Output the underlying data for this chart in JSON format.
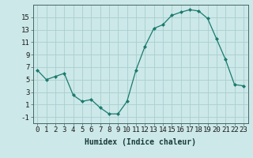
{
  "x": [
    0,
    1,
    2,
    3,
    4,
    5,
    6,
    7,
    8,
    9,
    10,
    11,
    12,
    13,
    14,
    15,
    16,
    17,
    18,
    19,
    20,
    21,
    22,
    23
  ],
  "y": [
    6.5,
    5.0,
    5.5,
    6.0,
    2.5,
    1.5,
    1.8,
    0.5,
    -0.5,
    -0.5,
    1.5,
    6.5,
    10.3,
    13.2,
    13.8,
    15.3,
    15.8,
    16.2,
    16.0,
    14.8,
    11.5,
    8.2,
    4.2,
    4.0
  ],
  "line_color": "#1a7a6e",
  "marker": "D",
  "marker_size": 2.0,
  "bg_color": "#cce8e8",
  "grid_color": "#aacece",
  "xlabel": "Humidex (Indice chaleur)",
  "xlim": [
    -0.5,
    23.5
  ],
  "ylim": [
    -2.0,
    17.0
  ],
  "yticks": [
    -1,
    1,
    3,
    5,
    7,
    9,
    11,
    13,
    15
  ],
  "xticks": [
    0,
    1,
    2,
    3,
    4,
    5,
    6,
    7,
    8,
    9,
    10,
    11,
    12,
    13,
    14,
    15,
    16,
    17,
    18,
    19,
    20,
    21,
    22,
    23
  ],
  "xlabel_fontsize": 7,
  "tick_fontsize": 6.5
}
